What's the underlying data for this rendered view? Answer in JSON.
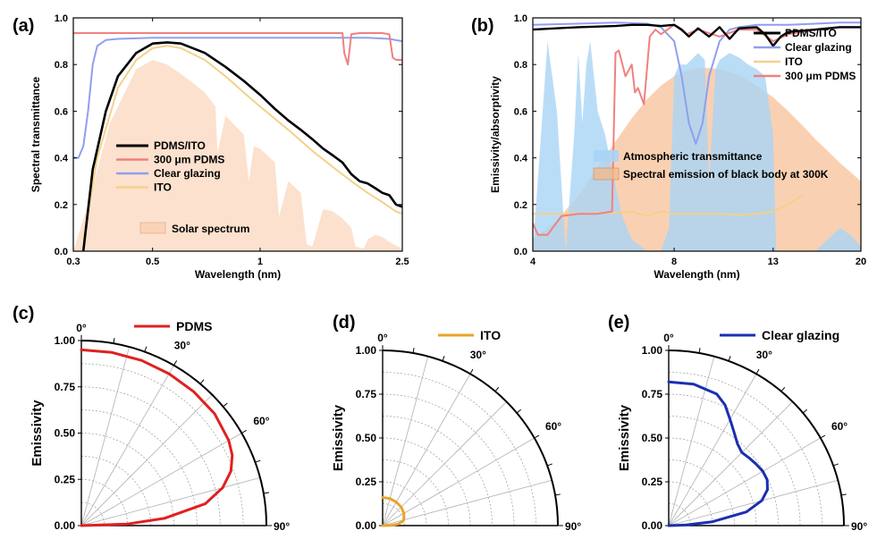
{
  "colors": {
    "pdms_ito": "#000000",
    "pdms_300": "#f08080",
    "clear_glazing": "#8f9ff0",
    "ito": "#f5d08a",
    "solar": "#f9c9a6",
    "atmos": "#a9d4f5",
    "blackbody": "#f6b889",
    "polar_pdms": "#e02020",
    "polar_ito": "#e8a52a",
    "polar_glazing": "#1a2fb0"
  },
  "chart_data": [
    {
      "id": "a",
      "panel_label": "(a)",
      "type": "line",
      "xlabel": "Wavelength (nm)",
      "ylabel": "Spectral transmittance",
      "xscale": "log",
      "xlim": [
        0.3,
        2.5
      ],
      "ylim": [
        0,
        1.0
      ],
      "xticks": [
        0.3,
        0.5,
        1,
        2.5
      ],
      "xtick_labels": [
        "0.3",
        "0.5",
        "1",
        "2.5"
      ],
      "yticks": [
        0,
        0.2,
        0.4,
        0.6,
        0.8,
        1.0
      ],
      "ytick_labels": [
        "0.0",
        "0.2",
        "0.4",
        "0.6",
        "0.8",
        "1.0"
      ],
      "legend": [
        "PDMS/ITO",
        "300 μm PDMS",
        "Clear glazing",
        "ITO"
      ],
      "fill_legend": "Solar spectrum",
      "series": [
        {
          "name": "PDMS/ITO",
          "color_key": "pdms_ito",
          "width": 2.6,
          "x": [
            0.32,
            0.34,
            0.37,
            0.4,
            0.45,
            0.5,
            0.55,
            0.6,
            0.7,
            0.8,
            0.9,
            1.0,
            1.1,
            1.2,
            1.3,
            1.4,
            1.5,
            1.6,
            1.7,
            1.8,
            1.9,
            2.0,
            2.1,
            2.2,
            2.3,
            2.4,
            2.5
          ],
          "y": [
            0.0,
            0.35,
            0.6,
            0.75,
            0.85,
            0.89,
            0.895,
            0.89,
            0.85,
            0.79,
            0.73,
            0.67,
            0.61,
            0.56,
            0.52,
            0.48,
            0.44,
            0.41,
            0.38,
            0.33,
            0.3,
            0.29,
            0.27,
            0.25,
            0.24,
            0.2,
            0.19
          ]
        },
        {
          "name": "300 μm PDMS",
          "color_key": "pdms_300",
          "width": 2,
          "x": [
            0.3,
            0.5,
            1.0,
            1.5,
            1.7,
            1.72,
            1.76,
            1.8,
            1.9,
            2.0,
            2.1,
            2.2,
            2.3,
            2.35,
            2.4,
            2.5
          ],
          "y": [
            0.935,
            0.935,
            0.935,
            0.935,
            0.935,
            0.85,
            0.8,
            0.93,
            0.935,
            0.935,
            0.935,
            0.935,
            0.93,
            0.83,
            0.82,
            0.82
          ]
        },
        {
          "name": "Clear glazing",
          "color_key": "clear_glazing",
          "width": 2,
          "x": [
            0.3,
            0.31,
            0.32,
            0.33,
            0.34,
            0.35,
            0.37,
            0.4,
            0.5,
            1.0,
            2.0,
            2.3,
            2.5
          ],
          "y": [
            0.4,
            0.4,
            0.45,
            0.6,
            0.8,
            0.88,
            0.905,
            0.91,
            0.915,
            0.915,
            0.915,
            0.91,
            0.9
          ]
        },
        {
          "name": "ITO",
          "color_key": "ito",
          "width": 2,
          "x": [
            0.32,
            0.35,
            0.4,
            0.45,
            0.5,
            0.55,
            0.6,
            0.7,
            0.8,
            0.9,
            1.0,
            1.2,
            1.4,
            1.6,
            1.8,
            2.0,
            2.2,
            2.4,
            2.5
          ],
          "y": [
            0.05,
            0.4,
            0.7,
            0.82,
            0.87,
            0.88,
            0.87,
            0.82,
            0.75,
            0.68,
            0.62,
            0.52,
            0.43,
            0.36,
            0.3,
            0.25,
            0.21,
            0.17,
            0.16
          ]
        }
      ],
      "fill": {
        "name": "Solar spectrum",
        "color_key": "solar",
        "x": [
          0.3,
          0.33,
          0.38,
          0.45,
          0.5,
          0.55,
          0.6,
          0.65,
          0.7,
          0.75,
          0.76,
          0.8,
          0.9,
          0.93,
          0.96,
          1.0,
          1.1,
          1.13,
          1.2,
          1.3,
          1.35,
          1.4,
          1.45,
          1.5,
          1.6,
          1.7,
          1.8,
          1.85,
          1.95,
          2.0,
          2.1,
          2.2,
          2.3,
          2.5
        ],
        "y": [
          0.0,
          0.2,
          0.55,
          0.78,
          0.82,
          0.8,
          0.76,
          0.72,
          0.68,
          0.62,
          0.42,
          0.58,
          0.5,
          0.3,
          0.45,
          0.44,
          0.38,
          0.15,
          0.3,
          0.25,
          0.03,
          0.02,
          0.1,
          0.18,
          0.17,
          0.14,
          0.1,
          0.02,
          0.01,
          0.05,
          0.07,
          0.06,
          0.04,
          0.01
        ]
      }
    },
    {
      "id": "b",
      "panel_label": "(b)",
      "type": "line",
      "xlabel": "Wavelength (nm)",
      "ylabel": "Emissivity/absorptivity",
      "xscale": "log",
      "xlim": [
        4,
        20
      ],
      "ylim": [
        0,
        1.0
      ],
      "xticks": [
        4,
        8,
        13,
        20
      ],
      "xtick_labels": [
        "4",
        "8",
        "13",
        "20"
      ],
      "yticks": [
        0,
        0.2,
        0.4,
        0.6,
        0.8,
        1.0
      ],
      "ytick_labels": [
        "0.0",
        "0.2",
        "0.4",
        "0.6",
        "0.8",
        "1.0"
      ],
      "legend": [
        "PDMS/ITO",
        "Clear glazing",
        "ITO",
        "300 μm PDMS"
      ],
      "fill_legend": [
        "Atmospheric transmittance",
        "Spectral emission of black body at 300K"
      ],
      "series": [
        {
          "name": "PDMS/ITO",
          "color_key": "pdms_ito",
          "width": 2.4,
          "x": [
            4,
            5,
            6,
            6.5,
            7,
            7.5,
            8,
            8.3,
            8.6,
            9,
            9.5,
            10,
            10.5,
            11,
            12,
            12.5,
            13,
            13.5,
            14,
            16,
            18,
            20
          ],
          "y": [
            0.95,
            0.96,
            0.965,
            0.97,
            0.97,
            0.965,
            0.97,
            0.95,
            0.92,
            0.955,
            0.92,
            0.96,
            0.91,
            0.955,
            0.96,
            0.93,
            0.88,
            0.92,
            0.94,
            0.95,
            0.96,
            0.96
          ]
        },
        {
          "name": "Clear glazing",
          "color_key": "clear_glazing",
          "width": 2,
          "x": [
            4,
            5,
            6,
            7,
            7.5,
            8,
            8.3,
            8.6,
            8.9,
            9.2,
            9.5,
            10,
            10.5,
            11,
            12,
            14,
            16,
            18,
            20
          ],
          "y": [
            0.97,
            0.975,
            0.98,
            0.975,
            0.96,
            0.9,
            0.75,
            0.55,
            0.46,
            0.55,
            0.75,
            0.9,
            0.95,
            0.96,
            0.97,
            0.97,
            0.975,
            0.98,
            0.98
          ]
        },
        {
          "name": "ITO",
          "color_key": "ito",
          "width": 2,
          "x": [
            4,
            5,
            6,
            6.5,
            7,
            7.5,
            8,
            9,
            10,
            11,
            12,
            13,
            14,
            15
          ],
          "y": [
            0.16,
            0.16,
            0.165,
            0.17,
            0.15,
            0.17,
            0.16,
            0.16,
            0.16,
            0.155,
            0.16,
            0.17,
            0.2,
            0.24
          ]
        },
        {
          "name": "300 μm PDMS",
          "color_key": "pdms_300",
          "width": 2,
          "x": [
            4,
            4.1,
            4.3,
            4.6,
            5,
            5.5,
            5.9,
            6.0,
            6.1,
            6.3,
            6.5,
            6.6,
            6.7,
            6.9,
            7.1,
            7.3,
            7.5,
            8,
            8.5,
            9,
            10,
            11,
            12,
            13,
            14,
            16,
            18,
            20
          ],
          "y": [
            0.12,
            0.07,
            0.07,
            0.15,
            0.16,
            0.16,
            0.17,
            0.85,
            0.86,
            0.75,
            0.8,
            0.68,
            0.7,
            0.63,
            0.92,
            0.95,
            0.93,
            0.97,
            0.93,
            0.95,
            0.92,
            0.95,
            0.95,
            0.9,
            0.93,
            0.95,
            0.96,
            0.96
          ]
        }
      ],
      "atmos_fill": {
        "name": "Atmospheric transmittance",
        "color_key": "atmos",
        "x": [
          4,
          4.3,
          4.5,
          4.7,
          4.9,
          5.0,
          5.1,
          5.2,
          5.3,
          5.5,
          5.7,
          5.9,
          6.2,
          6.5,
          7.0,
          7.5,
          7.8,
          8.0,
          8.2,
          8.5,
          9.0,
          9.3,
          9.5,
          9.8,
          10.0,
          10.5,
          11.0,
          11.5,
          12.0,
          12.5,
          13.0,
          13.2,
          13.5,
          14,
          16,
          17,
          18,
          19,
          20
        ],
        "y": [
          0.0,
          0.9,
          0.6,
          0.0,
          0.5,
          0.85,
          0.55,
          0.8,
          0.9,
          0.6,
          0.5,
          0.35,
          0.15,
          0.05,
          0.0,
          0.0,
          0.1,
          0.75,
          0.8,
          0.8,
          0.85,
          0.82,
          0.3,
          0.78,
          0.82,
          0.85,
          0.83,
          0.8,
          0.78,
          0.75,
          0.5,
          0.0,
          0.0,
          0.0,
          0.0,
          0.05,
          0.1,
          0.07,
          0.02
        ]
      },
      "blackbody_fill": {
        "name": "Spectral emission of black body at 300K",
        "color_key": "blackbody",
        "x": [
          4,
          4.5,
          5,
          5.5,
          6,
          6.5,
          7,
          7.5,
          8,
          8.5,
          9,
          9.5,
          10,
          10.5,
          11,
          12,
          13,
          14,
          15,
          16,
          18,
          20
        ],
        "y": [
          0.05,
          0.13,
          0.24,
          0.36,
          0.47,
          0.57,
          0.65,
          0.71,
          0.75,
          0.775,
          0.785,
          0.785,
          0.78,
          0.77,
          0.755,
          0.71,
          0.66,
          0.6,
          0.54,
          0.48,
          0.38,
          0.3
        ]
      }
    },
    {
      "id": "c",
      "panel_label": "(c)",
      "type": "polar",
      "ylabel": "Emissivity",
      "rlim": [
        0,
        1.0
      ],
      "rticks": [
        0,
        0.25,
        0.5,
        0.75,
        1.0
      ],
      "rtick_labels": [
        "0.00",
        "0.25",
        "0.50",
        "0.75",
        "1.00"
      ],
      "angle_labels": [
        "0°",
        "30°",
        "60°",
        "90°"
      ],
      "legend": "PDMS",
      "color_key": "polar_pdms",
      "angle_deg": [
        0,
        10,
        20,
        30,
        40,
        50,
        60,
        65,
        70,
        75,
        80,
        85,
        88,
        90
      ],
      "r": [
        0.95,
        0.95,
        0.95,
        0.948,
        0.945,
        0.94,
        0.92,
        0.9,
        0.86,
        0.79,
        0.68,
        0.45,
        0.25,
        0.0
      ]
    },
    {
      "id": "d",
      "panel_label": "(d)",
      "type": "polar",
      "ylabel": "Emissivity",
      "rlim": [
        0,
        1.0
      ],
      "rticks": [
        0,
        0.25,
        0.5,
        0.75,
        1.0
      ],
      "rtick_labels": [
        "0.00",
        "0.25",
        "0.50",
        "0.75",
        "1.00"
      ],
      "angle_labels": [
        "0°",
        "30°",
        "60°",
        "90°"
      ],
      "legend": "ITO",
      "color_key": "polar_ito",
      "angle_deg": [
        0,
        15,
        30,
        45,
        60,
        70,
        78,
        84,
        88,
        90
      ],
      "r": [
        0.16,
        0.16,
        0.155,
        0.15,
        0.14,
        0.13,
        0.12,
        0.09,
        0.05,
        0.0
      ]
    },
    {
      "id": "e",
      "panel_label": "(e)",
      "type": "polar",
      "ylabel": "Emissivity",
      "rlim": [
        0,
        1.0
      ],
      "rticks": [
        0,
        0.25,
        0.5,
        0.75,
        1.0
      ],
      "rtick_labels": [
        "0.00",
        "0.25",
        "0.50",
        "0.75",
        "1.00"
      ],
      "angle_labels": [
        "0°",
        "30°",
        "60°",
        "90°"
      ],
      "legend": "Clear glazing",
      "color_key": "polar_glazing",
      "angle_deg": [
        0,
        10,
        20,
        25,
        30,
        35,
        40,
        45,
        50,
        55,
        60,
        65,
        70,
        75,
        80,
        85,
        88,
        90
      ],
      "r": [
        0.82,
        0.82,
        0.8,
        0.76,
        0.7,
        0.65,
        0.61,
        0.59,
        0.6,
        0.61,
        0.62,
        0.62,
        0.6,
        0.55,
        0.45,
        0.25,
        0.1,
        0.0
      ]
    }
  ]
}
